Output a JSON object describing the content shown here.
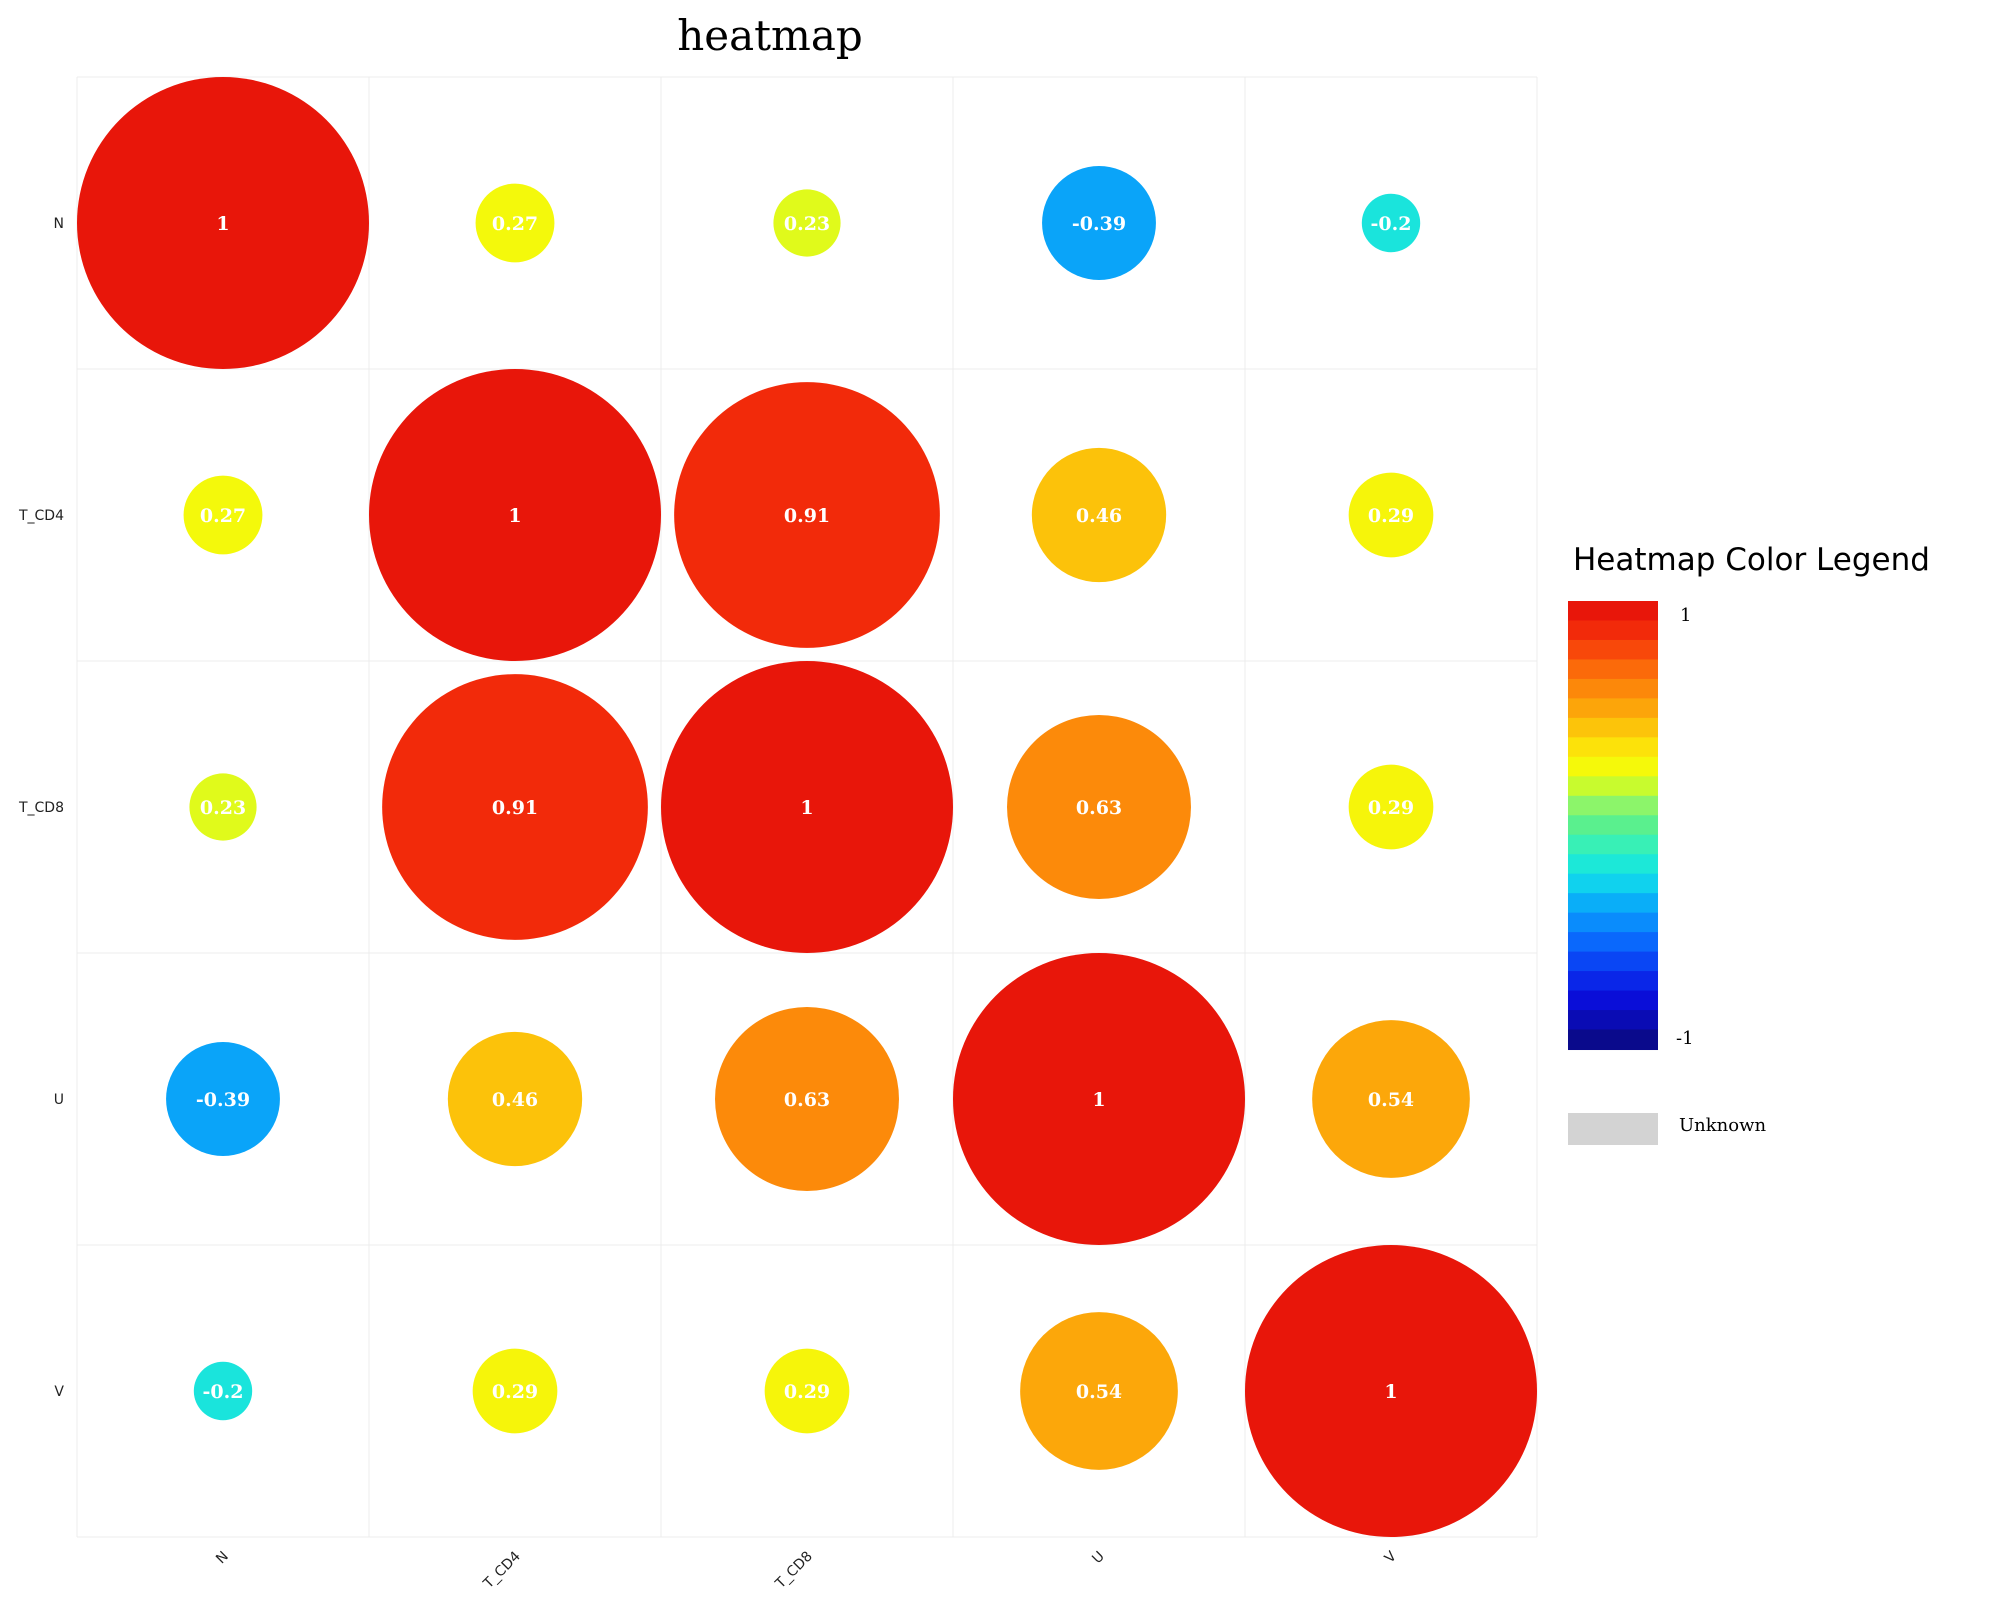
{
  "chart_data": {
    "type": "heatmap",
    "title": "heatmap",
    "variables": [
      "N",
      "T_CD4",
      "T_CD8",
      "U",
      "V"
    ],
    "row_labels": [
      "N",
      "T_CD4",
      "T_CD8",
      "U",
      "V"
    ],
    "col_labels": [
      "N",
      "T_CD4",
      "T_CD8",
      "U",
      "V"
    ],
    "matrix": [
      [
        1,
        0.27,
        0.23,
        -0.39,
        -0.2
      ],
      [
        0.27,
        1,
        0.91,
        0.46,
        0.29
      ],
      [
        0.23,
        0.91,
        1,
        0.63,
        0.29
      ],
      [
        -0.39,
        0.46,
        0.63,
        1,
        0.54
      ],
      [
        -0.2,
        0.29,
        0.29,
        0.54,
        1
      ]
    ],
    "value_range": [
      -1,
      1
    ],
    "marker": "circle sized and colored by value",
    "grid": true,
    "legend": {
      "title": "Heatmap Color Legend",
      "max_label": "1",
      "min_label": "-1",
      "unknown_label": "Unknown",
      "unknown_color": "#d3d3d3",
      "placement": "right",
      "colors": [
        "#e8160a",
        "#f22a0a",
        "#f8480a",
        "#fb6a0a",
        "#fc880a",
        "#fca50a",
        "#fcc40a",
        "#fce20a",
        "#f5f90a",
        "#c8fb2e",
        "#8cf56a",
        "#5af08e",
        "#38f0b6",
        "#1ce8d8",
        "#10d2ee",
        "#0aaef8",
        "#0a8cfc",
        "#0a68fc",
        "#0a46f4",
        "#0a26e8",
        "#0a0ed8",
        "#0a0cb4",
        "#0a0a8c"
      ]
    }
  }
}
